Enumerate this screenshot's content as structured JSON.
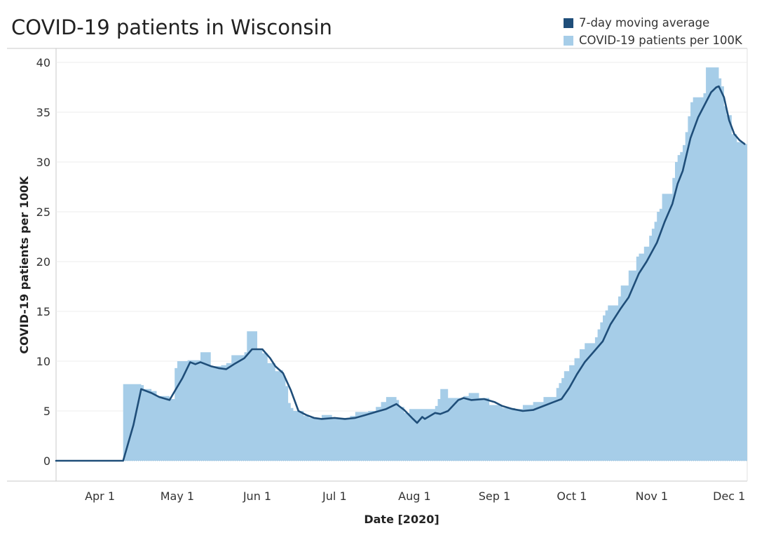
{
  "chart_data": {
    "type": "area",
    "title": "COVID-19 patients in Wisconsin",
    "xlabel": "Date [2020]",
    "ylabel": "COVID-19 patients per 100K",
    "xlim": [
      "2020-03-15",
      "2020-12-08"
    ],
    "ylim": [
      0,
      40
    ],
    "yticks": [
      0,
      5,
      10,
      15,
      20,
      25,
      30,
      35,
      40
    ],
    "xticks": [
      {
        "date": "2020-04-01",
        "label": "Apr 1"
      },
      {
        "date": "2020-05-01",
        "label": "May 1"
      },
      {
        "date": "2020-06-01",
        "label": "Jun 1"
      },
      {
        "date": "2020-07-01",
        "label": "Jul 1"
      },
      {
        "date": "2020-08-01",
        "label": "Aug 1"
      },
      {
        "date": "2020-09-01",
        "label": "Sep 1"
      },
      {
        "date": "2020-10-01",
        "label": "Oct 1"
      },
      {
        "date": "2020-11-01",
        "label": "Nov 1"
      },
      {
        "date": "2020-12-01",
        "label": "Dec 1"
      }
    ],
    "grid": true,
    "legend_position": "top-right",
    "series": [
      {
        "name": "7-day moving average",
        "kind": "line",
        "color": "#1f4e79",
        "points": [
          [
            "2020-03-15",
            0
          ],
          [
            "2020-04-10",
            0
          ],
          [
            "2020-04-14",
            3.6
          ],
          [
            "2020-04-17",
            7.2
          ],
          [
            "2020-04-21",
            6.8
          ],
          [
            "2020-04-24",
            6.4
          ],
          [
            "2020-04-28",
            6.1
          ],
          [
            "2020-05-03",
            8.3
          ],
          [
            "2020-05-06",
            9.9
          ],
          [
            "2020-05-08",
            9.7
          ],
          [
            "2020-05-10",
            9.9
          ],
          [
            "2020-05-14",
            9.5
          ],
          [
            "2020-05-17",
            9.3
          ],
          [
            "2020-05-20",
            9.2
          ],
          [
            "2020-05-23",
            9.7
          ],
          [
            "2020-05-27",
            10.3
          ],
          [
            "2020-05-30",
            11.2
          ],
          [
            "2020-06-03",
            11.2
          ],
          [
            "2020-06-06",
            10.3
          ],
          [
            "2020-06-08",
            9.5
          ],
          [
            "2020-06-11",
            8.8
          ],
          [
            "2020-06-14",
            7.1
          ],
          [
            "2020-06-17",
            5.0
          ],
          [
            "2020-06-20",
            4.6
          ],
          [
            "2020-06-23",
            4.3
          ],
          [
            "2020-06-26",
            4.2
          ],
          [
            "2020-07-01",
            4.3
          ],
          [
            "2020-07-05",
            4.2
          ],
          [
            "2020-07-09",
            4.3
          ],
          [
            "2020-07-13",
            4.6
          ],
          [
            "2020-07-17",
            4.9
          ],
          [
            "2020-07-21",
            5.2
          ],
          [
            "2020-07-25",
            5.7
          ],
          [
            "2020-07-28",
            5.1
          ],
          [
            "2020-07-31",
            4.3
          ],
          [
            "2020-08-02",
            3.8
          ],
          [
            "2020-08-04",
            4.4
          ],
          [
            "2020-08-05",
            4.2
          ],
          [
            "2020-08-09",
            4.8
          ],
          [
            "2020-08-11",
            4.7
          ],
          [
            "2020-08-14",
            5.0
          ],
          [
            "2020-08-18",
            6.1
          ],
          [
            "2020-08-20",
            6.3
          ],
          [
            "2020-08-23",
            6.1
          ],
          [
            "2020-08-28",
            6.2
          ],
          [
            "2020-09-01",
            5.9
          ],
          [
            "2020-09-04",
            5.5
          ],
          [
            "2020-09-08",
            5.2
          ],
          [
            "2020-09-12",
            5.0
          ],
          [
            "2020-09-16",
            5.1
          ],
          [
            "2020-09-20",
            5.5
          ],
          [
            "2020-09-24",
            5.9
          ],
          [
            "2020-09-27",
            6.2
          ],
          [
            "2020-09-30",
            7.3
          ],
          [
            "2020-10-03",
            8.7
          ],
          [
            "2020-10-06",
            9.9
          ],
          [
            "2020-10-09",
            10.8
          ],
          [
            "2020-10-13",
            12.0
          ],
          [
            "2020-10-16",
            13.7
          ],
          [
            "2020-10-20",
            15.3
          ],
          [
            "2020-10-23",
            16.4
          ],
          [
            "2020-10-27",
            18.8
          ],
          [
            "2020-10-30",
            20.0
          ],
          [
            "2020-11-03",
            21.9
          ],
          [
            "2020-11-06",
            24.0
          ],
          [
            "2020-11-09",
            25.8
          ],
          [
            "2020-11-11",
            27.8
          ],
          [
            "2020-11-13",
            29.1
          ],
          [
            "2020-11-16",
            32.4
          ],
          [
            "2020-11-19",
            34.5
          ],
          [
            "2020-11-21",
            35.5
          ],
          [
            "2020-11-24",
            37.0
          ],
          [
            "2020-11-26",
            37.5
          ],
          [
            "2020-11-27",
            37.6
          ],
          [
            "2020-11-29",
            36.5
          ],
          [
            "2020-12-01",
            34.2
          ],
          [
            "2020-12-03",
            32.8
          ],
          [
            "2020-12-05",
            32.2
          ],
          [
            "2020-12-07",
            31.8
          ]
        ]
      },
      {
        "name": "COVID-19 patients per 100K",
        "kind": "area-step",
        "color": "#a6cde8",
        "points": [
          [
            "2020-03-15",
            0
          ],
          [
            "2020-04-10",
            7.7
          ],
          [
            "2020-04-17",
            7.6
          ],
          [
            "2020-04-18",
            7.2
          ],
          [
            "2020-04-21",
            7.0
          ],
          [
            "2020-04-23",
            6.5
          ],
          [
            "2020-04-28",
            6.2
          ],
          [
            "2020-04-30",
            9.3
          ],
          [
            "2020-05-01",
            10.0
          ],
          [
            "2020-05-05",
            10.1
          ],
          [
            "2020-05-10",
            10.9
          ],
          [
            "2020-05-14",
            9.5
          ],
          [
            "2020-05-18",
            9.6
          ],
          [
            "2020-05-20",
            9.8
          ],
          [
            "2020-05-22",
            10.6
          ],
          [
            "2020-05-27",
            10.9
          ],
          [
            "2020-05-28",
            13.0
          ],
          [
            "2020-06-01",
            11.2
          ],
          [
            "2020-06-03",
            10.8
          ],
          [
            "2020-06-05",
            9.8
          ],
          [
            "2020-06-08",
            9.0
          ],
          [
            "2020-06-10",
            9.1
          ],
          [
            "2020-06-11",
            8.5
          ],
          [
            "2020-06-12",
            7.5
          ],
          [
            "2020-06-13",
            5.8
          ],
          [
            "2020-06-14",
            5.3
          ],
          [
            "2020-06-15",
            5.0
          ],
          [
            "2020-06-19",
            4.5
          ],
          [
            "2020-06-21",
            4.3
          ],
          [
            "2020-06-24",
            4.2
          ],
          [
            "2020-06-26",
            4.6
          ],
          [
            "2020-06-30",
            4.3
          ],
          [
            "2020-07-07",
            4.5
          ],
          [
            "2020-07-09",
            4.9
          ],
          [
            "2020-07-14",
            5.0
          ],
          [
            "2020-07-17",
            5.4
          ],
          [
            "2020-07-19",
            5.9
          ],
          [
            "2020-07-21",
            6.4
          ],
          [
            "2020-07-25",
            6.1
          ],
          [
            "2020-07-26",
            5.4
          ],
          [
            "2020-07-28",
            4.8
          ],
          [
            "2020-07-30",
            5.2
          ],
          [
            "2020-08-09",
            5.5
          ],
          [
            "2020-08-10",
            6.2
          ],
          [
            "2020-08-11",
            7.2
          ],
          [
            "2020-08-14",
            6.3
          ],
          [
            "2020-08-20",
            6.5
          ],
          [
            "2020-08-22",
            6.8
          ],
          [
            "2020-08-26",
            6.3
          ],
          [
            "2020-08-30",
            5.6
          ],
          [
            "2020-09-04",
            5.3
          ],
          [
            "2020-09-09",
            5.2
          ],
          [
            "2020-09-12",
            5.6
          ],
          [
            "2020-09-16",
            5.9
          ],
          [
            "2020-09-20",
            6.4
          ],
          [
            "2020-09-25",
            7.3
          ],
          [
            "2020-09-26",
            7.8
          ],
          [
            "2020-09-27",
            8.3
          ],
          [
            "2020-09-28",
            9.0
          ],
          [
            "2020-09-30",
            9.6
          ],
          [
            "2020-10-02",
            10.3
          ],
          [
            "2020-10-04",
            11.2
          ],
          [
            "2020-10-06",
            11.8
          ],
          [
            "2020-10-10",
            12.4
          ],
          [
            "2020-10-11",
            13.2
          ],
          [
            "2020-10-12",
            13.9
          ],
          [
            "2020-10-13",
            14.6
          ],
          [
            "2020-10-14",
            15.1
          ],
          [
            "2020-10-15",
            15.6
          ],
          [
            "2020-10-19",
            16.5
          ],
          [
            "2020-10-20",
            17.6
          ],
          [
            "2020-10-23",
            19.1
          ],
          [
            "2020-10-26",
            20.5
          ],
          [
            "2020-10-27",
            20.8
          ],
          [
            "2020-10-29",
            21.5
          ],
          [
            "2020-10-31",
            22.6
          ],
          [
            "2020-11-01",
            23.3
          ],
          [
            "2020-11-02",
            24.0
          ],
          [
            "2020-11-03",
            25.0
          ],
          [
            "2020-11-04",
            25.3
          ],
          [
            "2020-11-05",
            26.8
          ],
          [
            "2020-11-09",
            28.4
          ],
          [
            "2020-11-10",
            30.0
          ],
          [
            "2020-11-11",
            30.7
          ],
          [
            "2020-11-12",
            31.0
          ],
          [
            "2020-11-13",
            31.7
          ],
          [
            "2020-11-14",
            33.0
          ],
          [
            "2020-11-15",
            34.6
          ],
          [
            "2020-11-16",
            36.0
          ],
          [
            "2020-11-17",
            36.5
          ],
          [
            "2020-11-21",
            36.9
          ],
          [
            "2020-11-22",
            39.5
          ],
          [
            "2020-11-27",
            38.4
          ],
          [
            "2020-11-28",
            37.6
          ],
          [
            "2020-11-29",
            35.6
          ],
          [
            "2020-11-30",
            34.7
          ],
          [
            "2020-12-02",
            32.8
          ],
          [
            "2020-12-04",
            32.0
          ],
          [
            "2020-12-07",
            31.8
          ]
        ]
      }
    ]
  }
}
